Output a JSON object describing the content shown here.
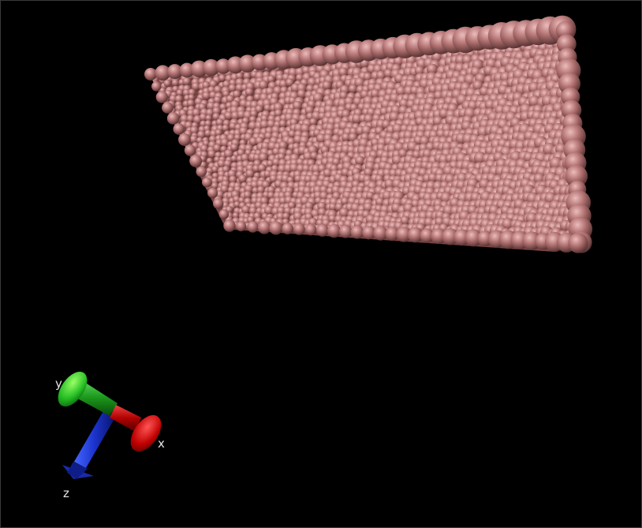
{
  "viewer": {
    "background": "#000000"
  },
  "molecule": {
    "color": "#b06e6e",
    "highlight": "#e8b3b3",
    "shadow": "#4a2828"
  },
  "axes": {
    "x": {
      "label": "x",
      "color": "#cc0000"
    },
    "y": {
      "label": "y",
      "color": "#22aa22"
    },
    "z": {
      "label": "z",
      "color": "#1a33cc"
    }
  }
}
